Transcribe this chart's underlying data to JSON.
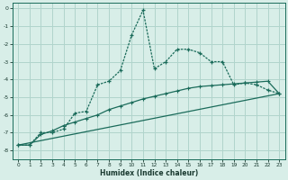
{
  "xlabel": "Humidex (Indice chaleur)",
  "xlim": [
    -0.5,
    23.5
  ],
  "ylim": [
    -8.5,
    0.3
  ],
  "yticks": [
    0,
    -1,
    -2,
    -3,
    -4,
    -5,
    -6,
    -7,
    -8
  ],
  "xticks": [
    0,
    1,
    2,
    3,
    4,
    5,
    6,
    7,
    8,
    9,
    10,
    11,
    12,
    13,
    14,
    15,
    16,
    17,
    18,
    19,
    20,
    21,
    22,
    23
  ],
  "background_color": "#d8eee8",
  "grid_color": "#b0d4cc",
  "line_color": "#1a6b5a",
  "line1_x": [
    0,
    1,
    2,
    3,
    4,
    5,
    6,
    7,
    8,
    9,
    10,
    11,
    12,
    13,
    14,
    15,
    16,
    17,
    18,
    19,
    20,
    21,
    22,
    23
  ],
  "line1_y": [
    -7.7,
    -7.7,
    -7.0,
    -7.0,
    -6.8,
    -5.9,
    -5.8,
    -4.3,
    -4.1,
    -3.5,
    -1.5,
    -0.1,
    -3.4,
    -3.0,
    -2.3,
    -2.3,
    -2.5,
    -3.0,
    -3.0,
    -4.3,
    -4.2,
    -4.3,
    -4.6,
    -4.8
  ],
  "line2_x": [
    0,
    1,
    2,
    3,
    4,
    5,
    6,
    7,
    8,
    9,
    10,
    11,
    12,
    13,
    14,
    15,
    16,
    17,
    18,
    19,
    20,
    21,
    22,
    23
  ],
  "line2_y": [
    -7.7,
    -7.7,
    -7.1,
    -6.9,
    -6.6,
    -6.4,
    -6.2,
    -6.0,
    -5.7,
    -5.5,
    -5.3,
    -5.1,
    -4.95,
    -4.8,
    -4.65,
    -4.5,
    -4.4,
    -4.35,
    -4.3,
    -4.25,
    -4.2,
    -4.15,
    -4.1,
    -4.8
  ],
  "line3_x": [
    0,
    23
  ],
  "line3_y": [
    -7.7,
    -4.8
  ]
}
